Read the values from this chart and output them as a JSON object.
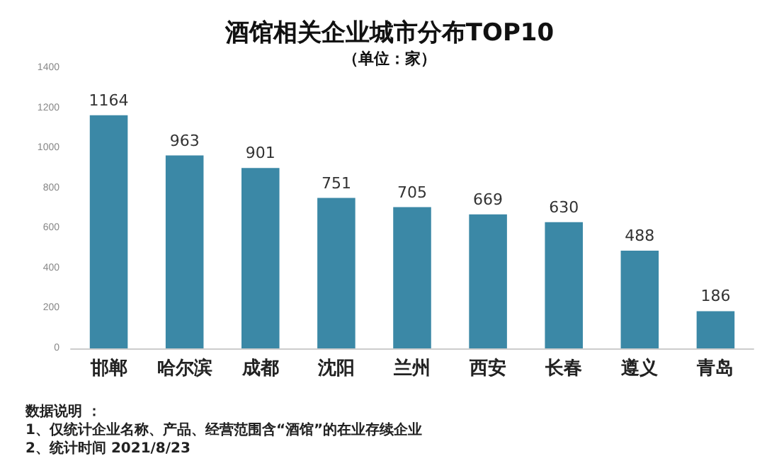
{
  "chart_data": {
    "type": "bar",
    "title": "酒馆相关企业城市分布TOP10",
    "subtitle": "（单位：家）",
    "categories": [
      "邯郸",
      "哈尔滨",
      "成都",
      "沈阳",
      "兰州",
      "西安",
      "长春",
      "遵义",
      "青岛"
    ],
    "values": [
      1164,
      963,
      901,
      751,
      705,
      669,
      630,
      488,
      186
    ],
    "color": "#3b88a6",
    "ylim": [
      0,
      1400
    ],
    "yticks": [
      0,
      200,
      400,
      600,
      800,
      1000,
      1200,
      1400
    ],
    "grid": false,
    "data_labels": true,
    "annotations": [
      "数据说明 ：",
      "1、仅统计企业名称、产品、经营范围含“酒馆”的在业存续企业",
      "2、统计时间 2021/8/23"
    ]
  }
}
